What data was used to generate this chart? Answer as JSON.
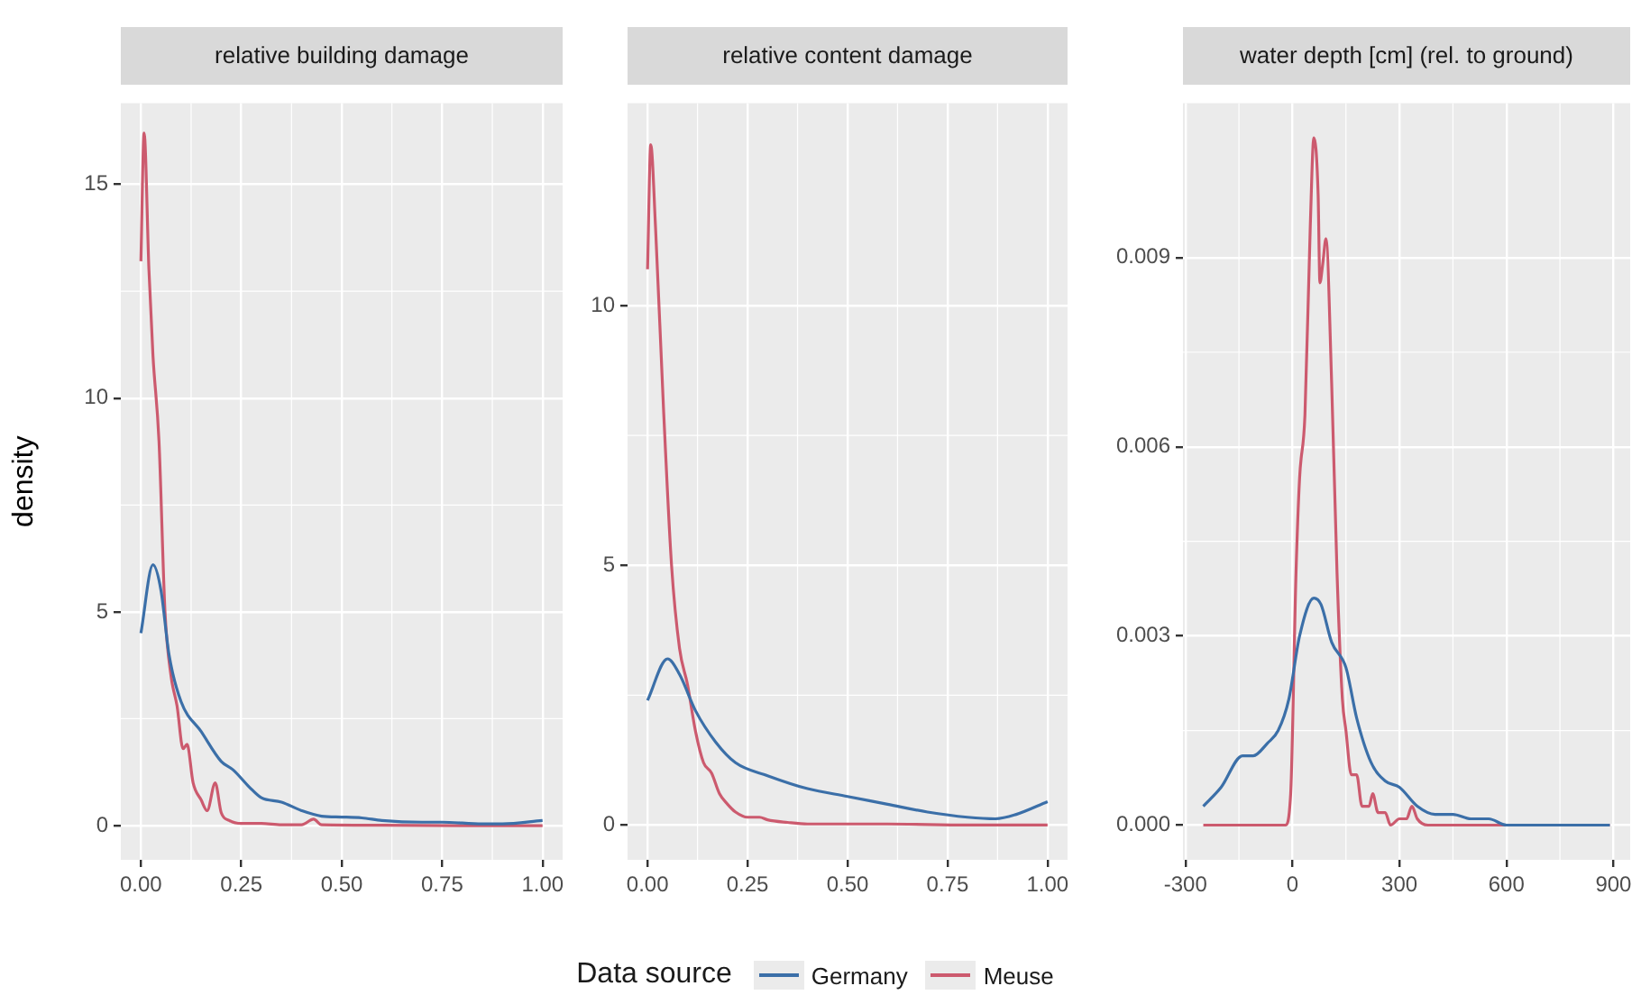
{
  "chart_data": [
    {
      "type": "line",
      "title": "relative building damage",
      "ylabel": "density",
      "xlim": [
        -0.05,
        1.05
      ],
      "ylim": [
        -0.8,
        16.9
      ],
      "xticks": [
        {
          "value": 0,
          "label": "0.00"
        },
        0.25,
        {
          "value": 0.5,
          "label": "0.50"
        },
        0.75,
        {
          "value": 1,
          "label": "1.00"
        }
      ],
      "yticks": [
        0,
        5,
        10,
        15
      ],
      "grid": true,
      "legend": "bottom",
      "legend_title": "Data source",
      "series": [
        {
          "name": "Germany",
          "color": "#3b6fa8",
          "x": [
            0,
            0.03,
            0.05,
            0.07,
            0.1,
            0.15,
            0.2,
            0.23,
            0.27,
            0.3,
            0.35,
            0.4,
            0.45,
            0.5,
            0.55,
            0.6,
            0.7,
            0.75,
            0.85,
            0.9,
            1.0
          ],
          "values": [
            4.5,
            6.1,
            5.5,
            4.0,
            2.9,
            2.2,
            1.5,
            1.3,
            0.9,
            0.65,
            0.55,
            0.35,
            0.22,
            0.2,
            0.18,
            0.12,
            0.08,
            0.08,
            0.04,
            0.04,
            0.12
          ]
        },
        {
          "name": "Meuse",
          "color": "#cc5a6e",
          "x": [
            0,
            0.008,
            0.02,
            0.03,
            0.045,
            0.06,
            0.075,
            0.09,
            0.105,
            0.115,
            0.13,
            0.15,
            0.165,
            0.185,
            0.2,
            0.22,
            0.25,
            0.3,
            0.35,
            0.4,
            0.43,
            0.45,
            0.6,
            0.8,
            1.0
          ],
          "values": [
            13.2,
            16.2,
            13,
            11,
            9,
            5,
            3.5,
            2.8,
            1.8,
            1.9,
            1.0,
            0.6,
            0.35,
            1.0,
            0.3,
            0.12,
            0.05,
            0.05,
            0.02,
            0.02,
            0.15,
            0.02,
            0.01,
            0,
            0
          ]
        }
      ]
    },
    {
      "type": "line",
      "title": "relative content damage",
      "xlim": [
        -0.05,
        1.05
      ],
      "ylim": [
        -0.67,
        13.9
      ],
      "xticks": [
        {
          "value": 0,
          "label": "0.00"
        },
        0.25,
        {
          "value": 0.5,
          "label": "0.50"
        },
        0.75,
        {
          "value": 1,
          "label": "1.00"
        }
      ],
      "yticks": [
        0,
        5,
        10
      ],
      "grid": true,
      "legend": "bottom",
      "series": [
        {
          "name": "Germany",
          "color": "#3b6fa8",
          "x": [
            0,
            0.05,
            0.08,
            0.12,
            0.17,
            0.22,
            0.3,
            0.4,
            0.5,
            0.6,
            0.7,
            0.8,
            0.87,
            0.92,
            1.0
          ],
          "values": [
            2.4,
            3.2,
            2.9,
            2.2,
            1.6,
            1.2,
            0.95,
            0.7,
            0.55,
            0.4,
            0.25,
            0.15,
            0.12,
            0.2,
            0.45
          ]
        },
        {
          "name": "Meuse",
          "color": "#cc5a6e",
          "x": [
            0,
            0.008,
            0.02,
            0.04,
            0.06,
            0.08,
            0.1,
            0.12,
            0.14,
            0.16,
            0.18,
            0.2,
            0.22,
            0.25,
            0.28,
            0.3,
            0.35,
            0.4,
            0.5,
            0.6,
            0.8,
            1.0
          ],
          "values": [
            10.7,
            13.1,
            11.5,
            8,
            5,
            3.4,
            2.7,
            1.8,
            1.2,
            1.0,
            0.6,
            0.4,
            0.25,
            0.15,
            0.15,
            0.1,
            0.05,
            0.02,
            0.02,
            0.02,
            0,
            0
          ]
        }
      ]
    },
    {
      "type": "line",
      "title": "water depth [cm] (rel. to ground)",
      "xlim": [
        -307,
        947
      ],
      "ylim": [
        -0.00055,
        0.01145
      ],
      "xticks": [
        -300,
        0,
        300,
        600,
        900
      ],
      "yticks": [
        {
          "value": 0,
          "label": "0.000"
        },
        0.003,
        0.006,
        0.009
      ],
      "grid": true,
      "legend": "bottom",
      "series": [
        {
          "name": "Germany",
          "color": "#3b6fa8",
          "x": [
            -250,
            -200,
            -140,
            -110,
            -70,
            -40,
            -10,
            20,
            60,
            80,
            110,
            150,
            180,
            220,
            260,
            300,
            350,
            400,
            450,
            500,
            550,
            600,
            700,
            800,
            890
          ],
          "values": [
            0.0003,
            0.0006,
            0.0011,
            0.0011,
            0.0013,
            0.0015,
            0.002,
            0.003,
            0.0036,
            0.0035,
            0.0029,
            0.0025,
            0.0017,
            0.001,
            0.0007,
            0.0006,
            0.0003,
            0.00017,
            0.00017,
            0.0001,
            0.0001,
            0,
            0,
            0,
            0
          ]
        },
        {
          "name": "Meuse",
          "color": "#cc5a6e",
          "x": [
            -250,
            -20,
            -5,
            10,
            20,
            35,
            50,
            60,
            72,
            77,
            85,
            94,
            110,
            125,
            140,
            150,
            165,
            180,
            195,
            215,
            225,
            240,
            260,
            275,
            300,
            320,
            335,
            350,
            380,
            600,
            890
          ],
          "values": [
            0,
            0,
            0.0005,
            0.004,
            0.0055,
            0.0065,
            0.0095,
            0.0109,
            0.01,
            0.0086,
            0.0089,
            0.0093,
            0.007,
            0.004,
            0.002,
            0.0015,
            0.0008,
            0.0008,
            0.0003,
            0.0003,
            0.0005,
            0.0002,
            0.0002,
            0,
            0.0001,
            0.0001,
            0.0003,
            0.0001,
            0,
            0,
            0
          ]
        }
      ]
    }
  ]
}
